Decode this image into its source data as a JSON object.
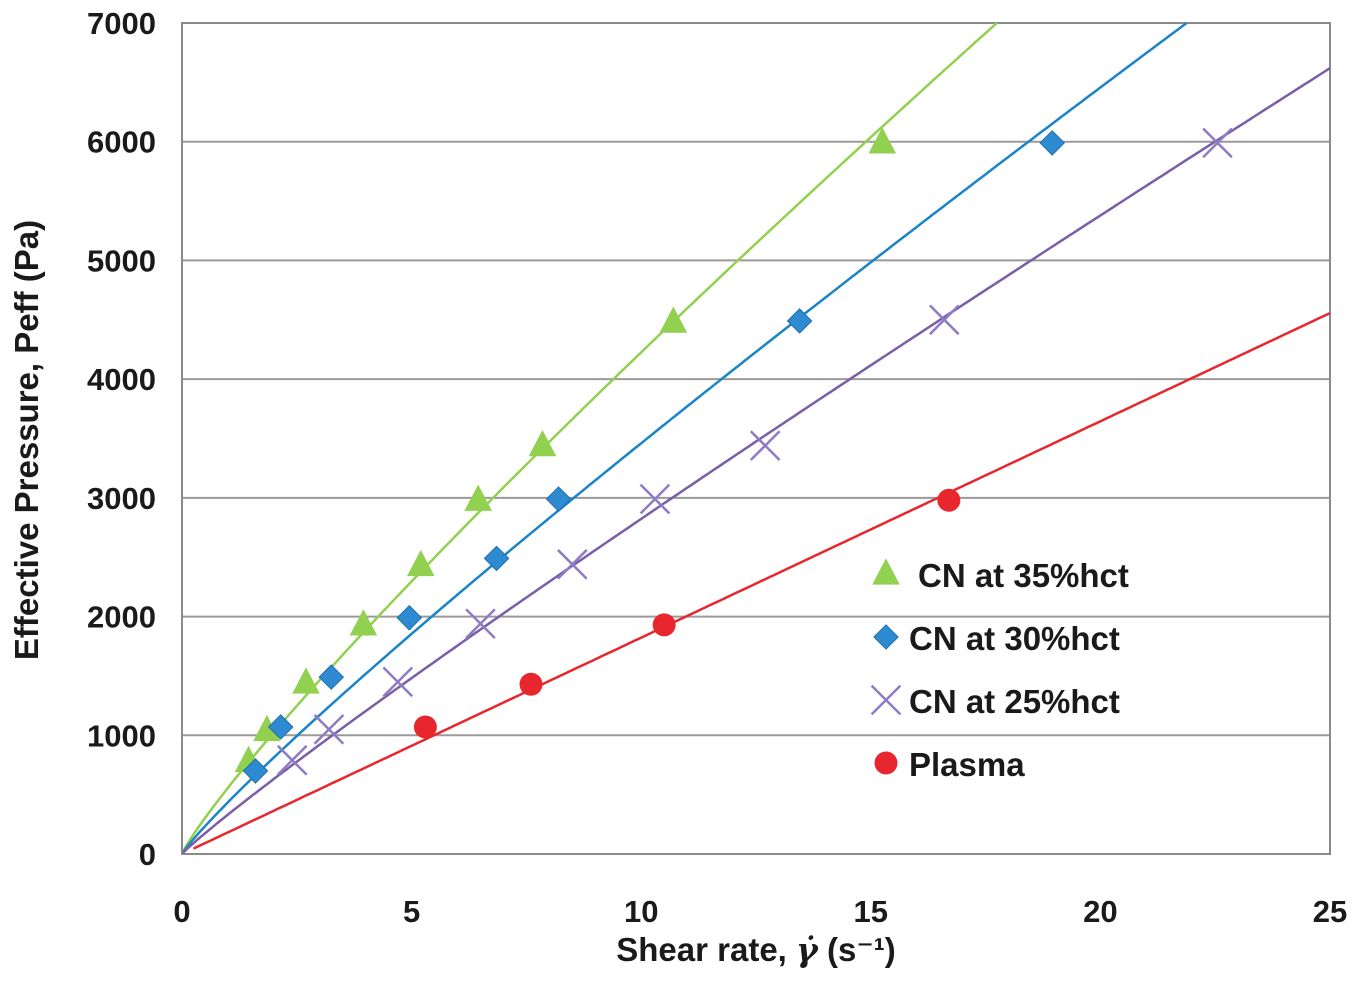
{
  "chart_data": {
    "type": "scatter",
    "title": "",
    "xlabel_prefix": "Shear rate, ",
    "xlabel_symbol": "γ̇",
    "xlabel_units": " (s⁻¹)",
    "ylabel": "Effective Pressure, Peff (Pa)",
    "xlim": [
      0,
      25
    ],
    "ylim": [
      0,
      7000
    ],
    "xticks": [
      0,
      5,
      10,
      15,
      20,
      25
    ],
    "xtick_labels": [
      "0",
      "5",
      "10",
      "15",
      "20",
      "25"
    ],
    "yticks": [
      0,
      1000,
      2000,
      3000,
      4000,
      5000,
      6000,
      7000
    ],
    "ytick_labels": [
      "0",
      "1000",
      "2000",
      "3000",
      "4000",
      "5000",
      "6000",
      "7000"
    ],
    "grid": "horizontal",
    "legend_position": "lower-right",
    "series": [
      {
        "name": "CN at 35%hct",
        "marker": "triangle",
        "color": "#92D050",
        "line_color": "#92D050",
        "fit_power": 0.88,
        "x": [
          1.45,
          1.85,
          2.7,
          3.95,
          5.2,
          6.45,
          7.85,
          10.7,
          15.25
        ],
        "y": [
          780,
          1040,
          1440,
          1930,
          2430,
          2980,
          3440,
          4480,
          5990
        ]
      },
      {
        "name": "CN at 30%hct",
        "marker": "diamond",
        "color": "#2E8BD1",
        "line_color": "#1A84C8",
        "fit_power": 0.9,
        "x": [
          1.6,
          2.15,
          3.25,
          4.95,
          6.85,
          8.2,
          13.45,
          18.95
        ],
        "y": [
          700,
          1070,
          1490,
          1990,
          2490,
          2990,
          4490,
          5990
        ]
      },
      {
        "name": "CN at 25%hct",
        "marker": "x",
        "color": "#8E7CC3",
        "line_color": "#7B5EA7",
        "fit_power": 0.93,
        "x": [
          2.4,
          3.2,
          4.7,
          6.5,
          8.5,
          10.3,
          12.7,
          16.6,
          22.55
        ],
        "y": [
          790,
          1050,
          1450,
          1940,
          2440,
          2990,
          3440,
          4500,
          5990
        ]
      },
      {
        "name": "Plasma",
        "marker": "circle",
        "color": "#E8262D",
        "line_color": "#E8262D",
        "fit_power": 1.0,
        "x": [
          5.3,
          7.6,
          10.5,
          16.7
        ],
        "y": [
          1070,
          1430,
          1930,
          2980
        ]
      }
    ]
  }
}
